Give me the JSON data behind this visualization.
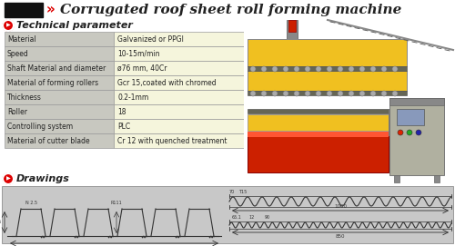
{
  "title": "Corrugated roof sheet roll forming machine",
  "title_fontsize": 11,
  "bg_color": "#ffffff",
  "header_rect_color": "#111111",
  "header_arrow_color": "#dd0000",
  "section_icon_color": "#dd0000",
  "table_bg_col1": "#c8c8c0",
  "table_bg_col2": "#f5f5dc",
  "table_border": "#999999",
  "table_rows": [
    [
      "Material",
      "Galvanized or PPGI"
    ],
    [
      "Speed",
      "10-15m/min"
    ],
    [
      "Shaft Material and diameter",
      "ø76 mm, 40Cr"
    ],
    [
      "Material of forming rollers",
      "Gcr 15,coated with chromed"
    ],
    [
      "Thickness",
      "0.2-1mm"
    ],
    [
      "Roller",
      "18"
    ],
    [
      "Controlling system",
      "PLC"
    ],
    [
      "Material of cutter blade",
      "Cr 12 with quenched treatment"
    ]
  ],
  "section1": "Technical parameter",
  "section2": "Drawings",
  "drawing_bg": "#c8c8c8",
  "font_color": "#222222",
  "machine_yellow": "#f0c020",
  "machine_yellow_dark": "#c8a010",
  "machine_red": "#cc2000",
  "machine_gray": "#b0b0a0",
  "machine_dark": "#444444"
}
